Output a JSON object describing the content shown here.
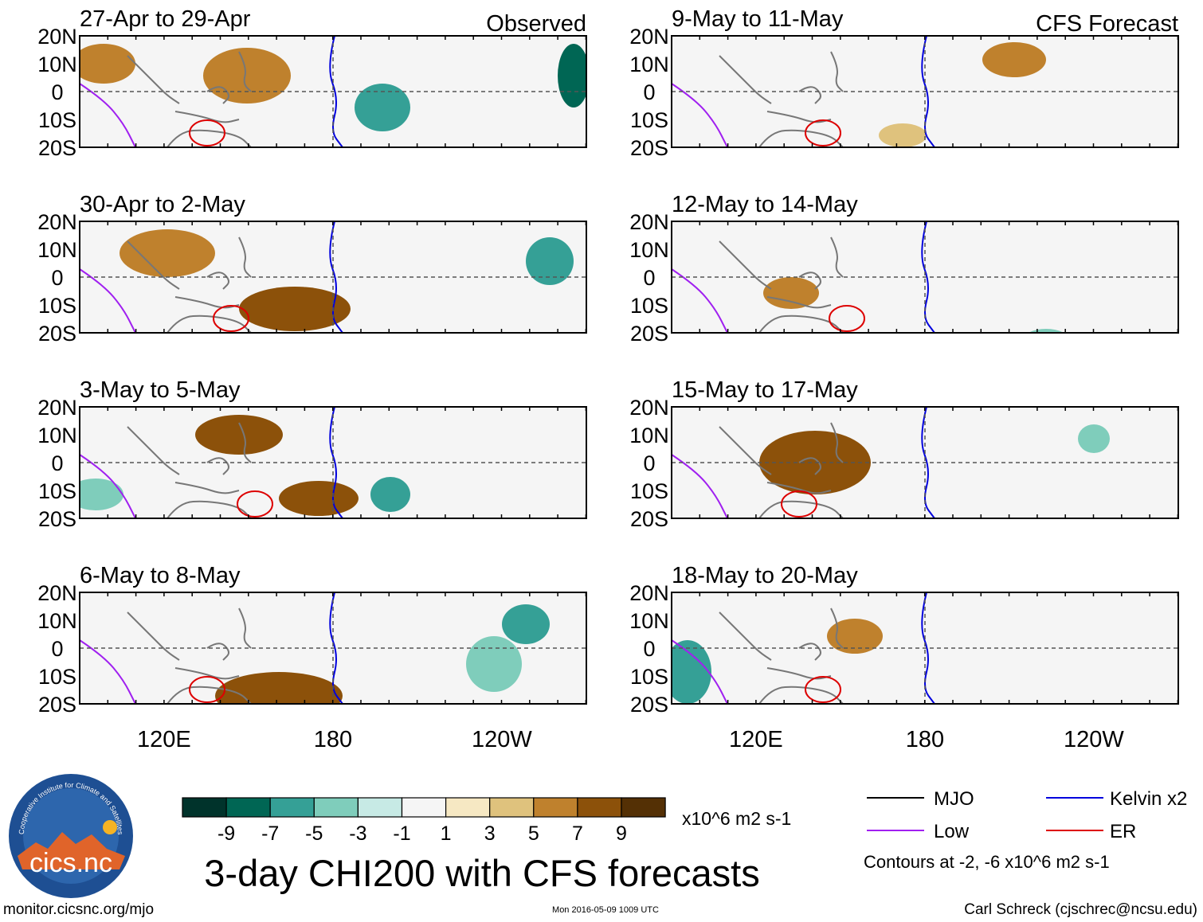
{
  "chart_data": {
    "type": "heatmap",
    "title": "3-day CHI200 with CFS forecasts",
    "units": "x10^6 m2 s-1",
    "column_headers": {
      "observed": "Observed",
      "forecast": "CFS Forecast"
    },
    "y_axis": {
      "labels": [
        "20N",
        "10N",
        "0",
        "10S",
        "20S"
      ],
      "range": [
        -20,
        20
      ]
    },
    "x_axis": {
      "labels": [
        "120E",
        "180",
        "120W"
      ],
      "range_deg_east": [
        90,
        270
      ]
    },
    "panels": [
      {
        "period": "27-Apr to 29-Apr",
        "source": "Observed"
      },
      {
        "period": "30-Apr to 2-May",
        "source": "Observed"
      },
      {
        "period": "3-May to 5-May",
        "source": "Observed"
      },
      {
        "period": "6-May to 8-May",
        "source": "Observed"
      },
      {
        "period": "9-May to 11-May",
        "source": "CFS Forecast"
      },
      {
        "period": "12-May to 14-May",
        "source": "CFS Forecast"
      },
      {
        "period": "15-May to 17-May",
        "source": "CFS Forecast"
      },
      {
        "period": "18-May to 20-May",
        "source": "CFS Forecast"
      }
    ],
    "colorbar": {
      "tick_labels": [
        "-9",
        "-7",
        "-5",
        "-3",
        "-1",
        "1",
        "3",
        "5",
        "7",
        "9"
      ],
      "colors": [
        "#00332b",
        "#006654",
        "#35a096",
        "#7fcdbb",
        "#c7eae5",
        "#f5f5f5",
        "#f6e8c3",
        "#dfc27d",
        "#bf812d",
        "#8c510a",
        "#543005"
      ]
    },
    "legend": [
      {
        "label": "MJO",
        "color": "#000000"
      },
      {
        "label": "Kelvin x2",
        "color": "#0000dd"
      },
      {
        "label": "Low",
        "color": "#a020f0"
      },
      {
        "label": "ER",
        "color": "#dd0000"
      }
    ],
    "contour_note": "Contours at -2, -6 x10^6 m2 s-1"
  },
  "footer": {
    "logo_text": "cics.nc",
    "logo_ring_text": "Cooperative Institute for Climate and Satellites",
    "url": "monitor.cicsnc.org/mjo",
    "timestamp": "Mon 2016-05-09 1009 UTC",
    "credit": "Carl Schreck (cjschrec@ncsu.edu)"
  }
}
